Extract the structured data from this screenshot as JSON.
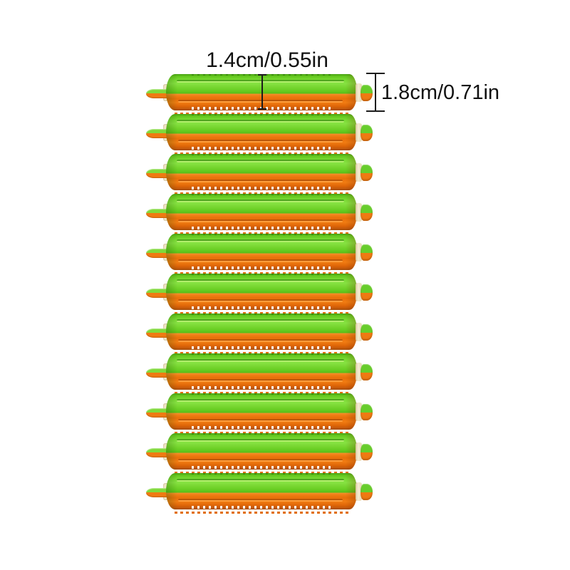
{
  "page": {
    "background": "#ffffff"
  },
  "annotations": {
    "width_label": "1.4cm/0.55in",
    "height_label": "1.8cm/0.71in"
  },
  "product": {
    "rod_count": 11,
    "colors": {
      "green": "#67cd2b",
      "orange": "#ef7a12",
      "washer": "#f1e6c8",
      "annotation": "#111111"
    }
  }
}
